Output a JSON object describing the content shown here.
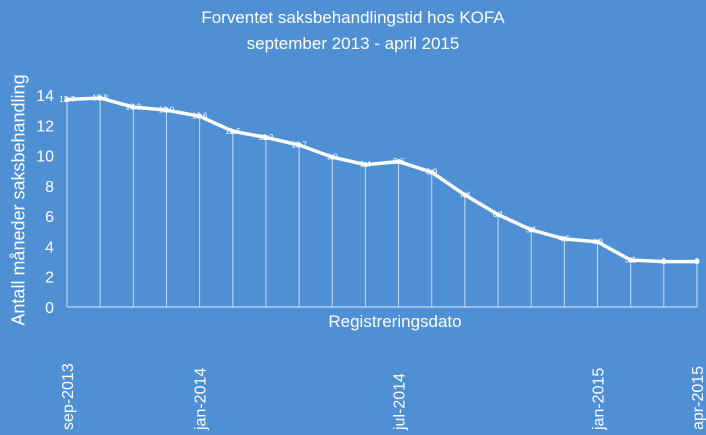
{
  "chart_data": {
    "type": "line",
    "title": "Forventet saksbehandlingstid hos KOFA",
    "subtitle": "september 2013 - april 2015",
    "xlabel": "Registreringsdato",
    "ylabel": "Antall måneder saksbehandling",
    "ylim": [
      0,
      14
    ],
    "yticks": [
      0,
      2,
      4,
      6,
      8,
      10,
      12,
      14
    ],
    "grid": false,
    "series": [
      {
        "values": [
          13.7,
          13.8,
          13.2,
          13.0,
          12.6,
          11.6,
          11.2,
          10.7,
          9.9,
          9.4,
          9.6,
          8.9,
          7.4,
          6.1,
          5.1,
          4.5,
          4.3,
          3.1,
          3.0,
          3.0
        ],
        "data_labels": [
          "13.7",
          "13.8",
          "13.2",
          "13.0",
          "12.6",
          "11.6",
          "11.2",
          "10.7",
          "9.9",
          "9.4",
          "9.6",
          "8.9",
          "7.4",
          "6.1",
          "5.1",
          "4.5",
          "4.3",
          "3.1",
          "3",
          "3"
        ]
      }
    ],
    "x_tick_labels": [
      {
        "index": 0,
        "label": "sep-2013"
      },
      {
        "index": 4,
        "label": "jan-2014"
      },
      {
        "index": 10,
        "label": "jul-2014"
      },
      {
        "index": 16,
        "label": "jan-2015"
      },
      {
        "index": 19,
        "label": "apr-2015"
      }
    ]
  },
  "style": {
    "background": "#4f8fd3",
    "line_color": "#ffffff",
    "drop_line_color": "#dce9f7"
  }
}
